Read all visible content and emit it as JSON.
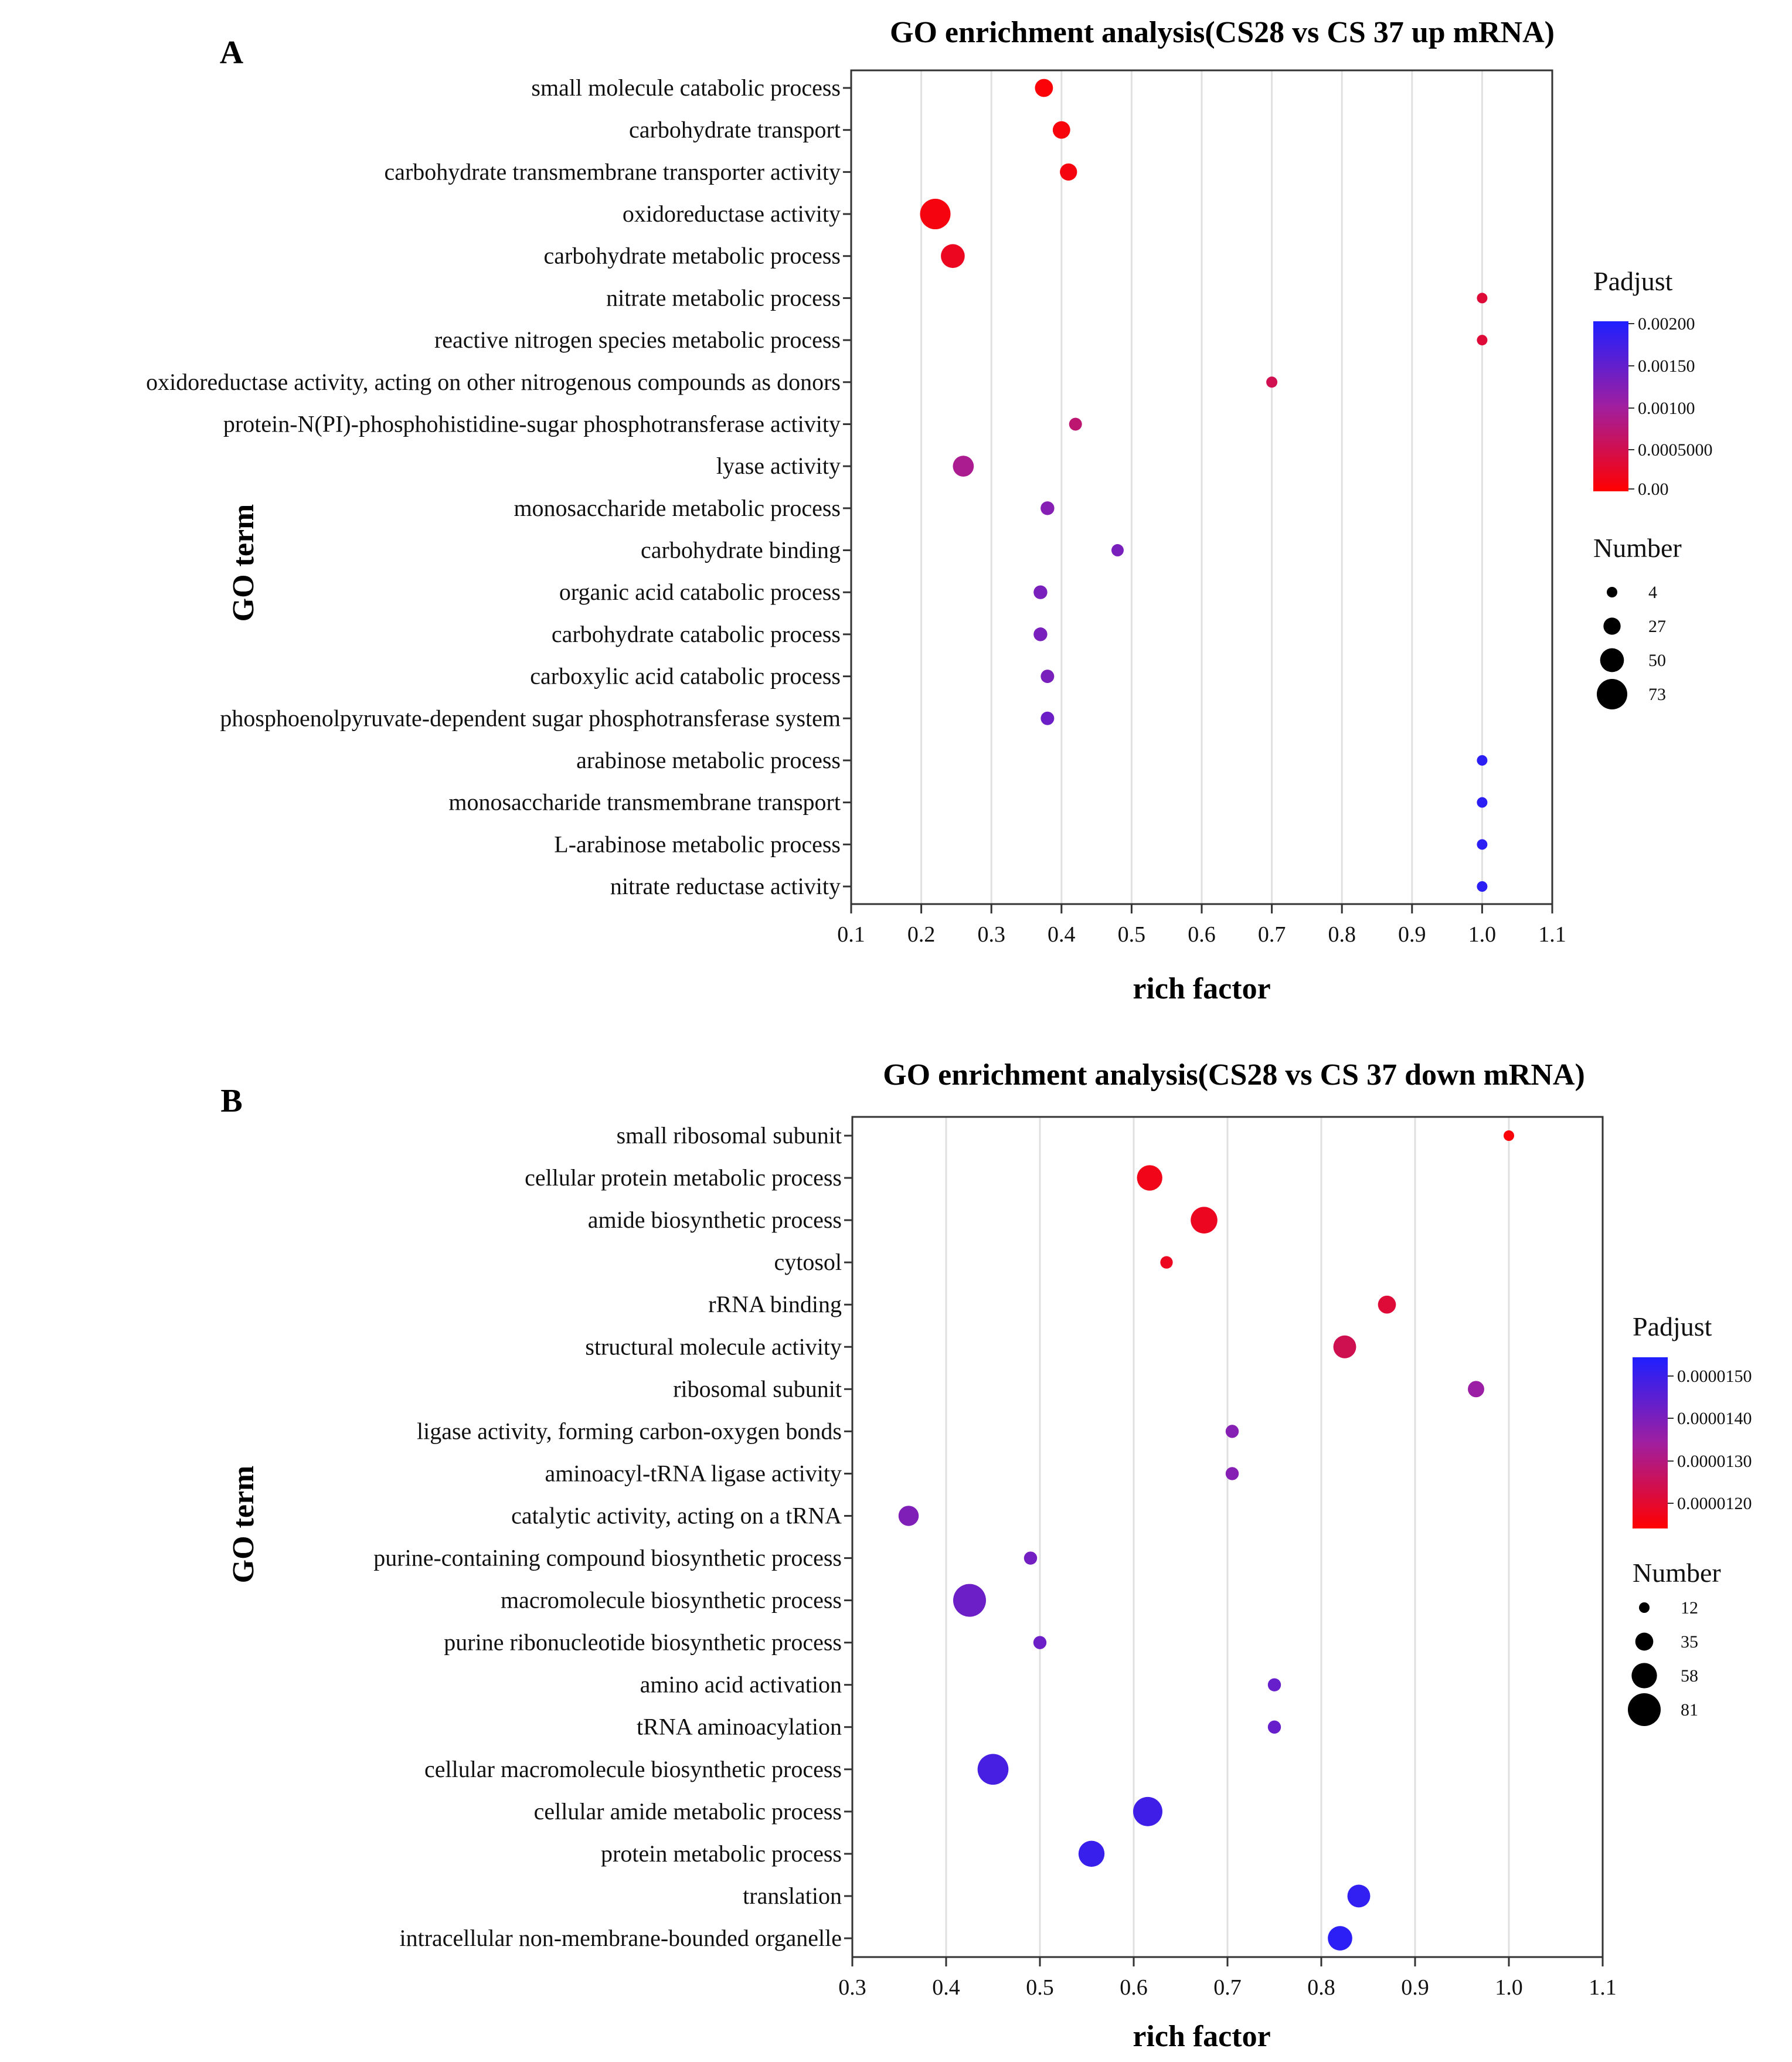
{
  "chart_data": [
    {
      "type": "scatter",
      "panel": "A",
      "title": "GO enrichment analysis(CS28 vs CS 37 up mRNA)",
      "xlabel": "rich factor",
      "ylabel": "GO term",
      "xlim": [
        0.1,
        1.1
      ],
      "xticks": [
        "0.1",
        "0.2",
        "0.3",
        "0.4",
        "0.5",
        "0.6",
        "0.7",
        "0.8",
        "0.9",
        "1.0",
        "1.1"
      ],
      "grid": true,
      "color_legend": {
        "title": "Padjust",
        "range": [
          0,
          0.002
        ],
        "ticks": [
          "0.00200",
          "0.00150",
          "0.00100",
          "0.0005000",
          "0.00"
        ],
        "colors": [
          "#1f1fff",
          "#ff0000"
        ]
      },
      "size_legend": {
        "title": "Number",
        "values": [
          4,
          27,
          50,
          73
        ]
      },
      "points": [
        {
          "term": "small molecule catabolic process",
          "x": 0.375,
          "number": 30,
          "padjust": 5e-05
        },
        {
          "term": "carbohydrate transport",
          "x": 0.4,
          "number": 28,
          "padjust": 7e-05
        },
        {
          "term": "carbohydrate transmembrane transporter activity",
          "x": 0.41,
          "number": 27,
          "padjust": 0.0001
        },
        {
          "term": "oxidoreductase activity",
          "x": 0.22,
          "number": 73,
          "padjust": 0.0001
        },
        {
          "term": "carbohydrate metabolic process",
          "x": 0.245,
          "number": 50,
          "padjust": 0.0002
        },
        {
          "term": "nitrate metabolic process",
          "x": 1.0,
          "number": 4,
          "padjust": 0.00035
        },
        {
          "term": "reactive nitrogen species metabolic process",
          "x": 1.0,
          "number": 4,
          "padjust": 0.00035
        },
        {
          "term": "oxidoreductase activity, acting on other nitrogenous compounds as donors",
          "x": 0.7,
          "number": 6,
          "padjust": 0.0005
        },
        {
          "term": "protein-N(PI)-phosphohistidine-sugar phosphotransferase activity",
          "x": 0.42,
          "number": 12,
          "padjust": 0.0007
        },
        {
          "term": "lyase activity",
          "x": 0.26,
          "number": 40,
          "padjust": 0.0009
        },
        {
          "term": "monosaccharide metabolic process",
          "x": 0.38,
          "number": 15,
          "padjust": 0.0012
        },
        {
          "term": "carbohydrate binding",
          "x": 0.48,
          "number": 10,
          "padjust": 0.0013
        },
        {
          "term": "organic acid catabolic process",
          "x": 0.37,
          "number": 15,
          "padjust": 0.0013
        },
        {
          "term": "carbohydrate catabolic process",
          "x": 0.37,
          "number": 15,
          "padjust": 0.0013
        },
        {
          "term": "carboxylic acid catabolic process",
          "x": 0.38,
          "number": 14,
          "padjust": 0.0013
        },
        {
          "term": "phosphoenolpyruvate-dependent sugar phosphotransferase system",
          "x": 0.38,
          "number": 14,
          "padjust": 0.0014
        },
        {
          "term": "arabinose metabolic process",
          "x": 1.0,
          "number": 4,
          "padjust": 0.0019
        },
        {
          "term": "monosaccharide transmembrane transport",
          "x": 1.0,
          "number": 4,
          "padjust": 0.0019
        },
        {
          "term": "L-arabinose metabolic process",
          "x": 1.0,
          "number": 4,
          "padjust": 0.0019
        },
        {
          "term": "nitrate reductase activity",
          "x": 1.0,
          "number": 4,
          "padjust": 0.0019
        }
      ]
    },
    {
      "type": "scatter",
      "panel": "B",
      "title": "GO enrichment analysis(CS28 vs CS 37 down mRNA)",
      "xlabel": "rich factor",
      "ylabel": "GO term",
      "xlim": [
        0.3,
        1.1
      ],
      "xticks": [
        "0.3",
        "0.4",
        "0.5",
        "0.6",
        "0.7",
        "0.8",
        "0.9",
        "1.0",
        "1.1"
      ],
      "grid": true,
      "color_legend": {
        "title": "Padjust",
        "range": [
          1.15e-05,
          1.55e-05
        ],
        "ticks": [
          "0.0000150",
          "0.0000140",
          "0.0000130",
          "0.0000120"
        ],
        "colors": [
          "#1f1fff",
          "#ff0000"
        ]
      },
      "size_legend": {
        "title": "Number",
        "values": [
          12,
          35,
          58,
          81
        ]
      },
      "points": [
        {
          "term": "small ribosomal subunit",
          "x": 1.0,
          "number": 12,
          "padjust": 1.16e-05
        },
        {
          "term": "cellular protein metabolic process",
          "x": 0.617,
          "number": 58,
          "padjust": 1.18e-05
        },
        {
          "term": "amide biosynthetic process",
          "x": 0.675,
          "number": 62,
          "padjust": 1.19e-05
        },
        {
          "term": "cytosol",
          "x": 0.635,
          "number": 18,
          "padjust": 1.19e-05
        },
        {
          "term": "rRNA binding",
          "x": 0.87,
          "number": 35,
          "padjust": 1.22e-05
        },
        {
          "term": "structural molecule activity",
          "x": 0.825,
          "number": 50,
          "padjust": 1.25e-05
        },
        {
          "term": "ribosomal subunit",
          "x": 0.965,
          "number": 30,
          "padjust": 1.36e-05
        },
        {
          "term": "ligase activity, forming carbon-oxygen bonds",
          "x": 0.705,
          "number": 20,
          "padjust": 1.39e-05
        },
        {
          "term": "aminoacyl-tRNA ligase activity",
          "x": 0.705,
          "number": 20,
          "padjust": 1.39e-05
        },
        {
          "term": "catalytic activity, acting on a tRNA",
          "x": 0.36,
          "number": 42,
          "padjust": 1.4e-05
        },
        {
          "term": "purine-containing compound biosynthetic process",
          "x": 0.49,
          "number": 20,
          "padjust": 1.42e-05
        },
        {
          "term": "macromolecule biosynthetic process",
          "x": 0.425,
          "number": 81,
          "padjust": 1.43e-05
        },
        {
          "term": "purine ribonucleotide biosynthetic process",
          "x": 0.5,
          "number": 20,
          "padjust": 1.43e-05
        },
        {
          "term": "amino acid activation",
          "x": 0.75,
          "number": 20,
          "padjust": 1.44e-05
        },
        {
          "term": "tRNA aminoacylation",
          "x": 0.75,
          "number": 20,
          "padjust": 1.44e-05
        },
        {
          "term": "cellular macromolecule biosynthetic process",
          "x": 0.45,
          "number": 75,
          "padjust": 1.49e-05
        },
        {
          "term": "cellular amide metabolic process",
          "x": 0.615,
          "number": 70,
          "padjust": 1.5e-05
        },
        {
          "term": "protein metabolic process",
          "x": 0.555,
          "number": 60,
          "padjust": 1.51e-05
        },
        {
          "term": "translation",
          "x": 0.84,
          "number": 50,
          "padjust": 1.52e-05
        },
        {
          "term": "intracellular non-membrane-bounded organelle",
          "x": 0.82,
          "number": 55,
          "padjust": 1.53e-05
        }
      ]
    }
  ]
}
